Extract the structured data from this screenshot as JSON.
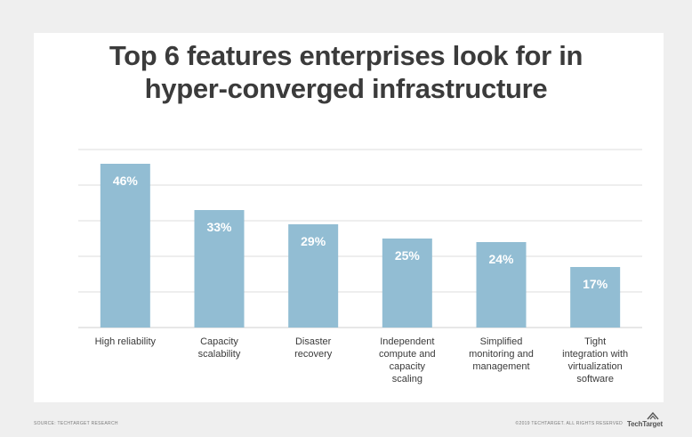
{
  "chart_data": {
    "type": "bar",
    "title": "Top 6 features enterprises look for in hyper-converged infrastructure",
    "title_lines": [
      "Top 6 features enterprises look for in",
      "hyper-converged infrastructure"
    ],
    "categories": [
      "High reliability",
      "Capacity scalability",
      "Disaster recovery",
      "Independent compute and capacity scaling",
      "Simplified monitoring and management",
      "Tight integration with virtualization software"
    ],
    "category_lines": [
      [
        "High reliability"
      ],
      [
        "Capacity",
        "scalability"
      ],
      [
        "Disaster",
        "recovery"
      ],
      [
        "Independent",
        "compute and",
        "capacity",
        "scaling"
      ],
      [
        "Simplified",
        "monitoring and",
        "management"
      ],
      [
        "Tight",
        "integration with",
        "virtualization",
        "software"
      ]
    ],
    "values": [
      46,
      33,
      29,
      25,
      24,
      17
    ],
    "value_labels": [
      "46%",
      "33%",
      "29%",
      "25%",
      "24%",
      "17%"
    ],
    "ylim": [
      0,
      50
    ],
    "grid": true,
    "xlabel": "",
    "ylabel": "",
    "colors": {
      "bar": "#92bdd3",
      "bar_label": "#ffffff",
      "title": "#3b3b3b",
      "background": "#efefef",
      "card": "#ffffff"
    }
  },
  "footer": {
    "source": "SOURCE: TECHTARGET RESEARCH",
    "copyright": "©2019 TECHTARGET. ALL RIGHTS RESERVED",
    "logo_text": "TechTarget"
  }
}
